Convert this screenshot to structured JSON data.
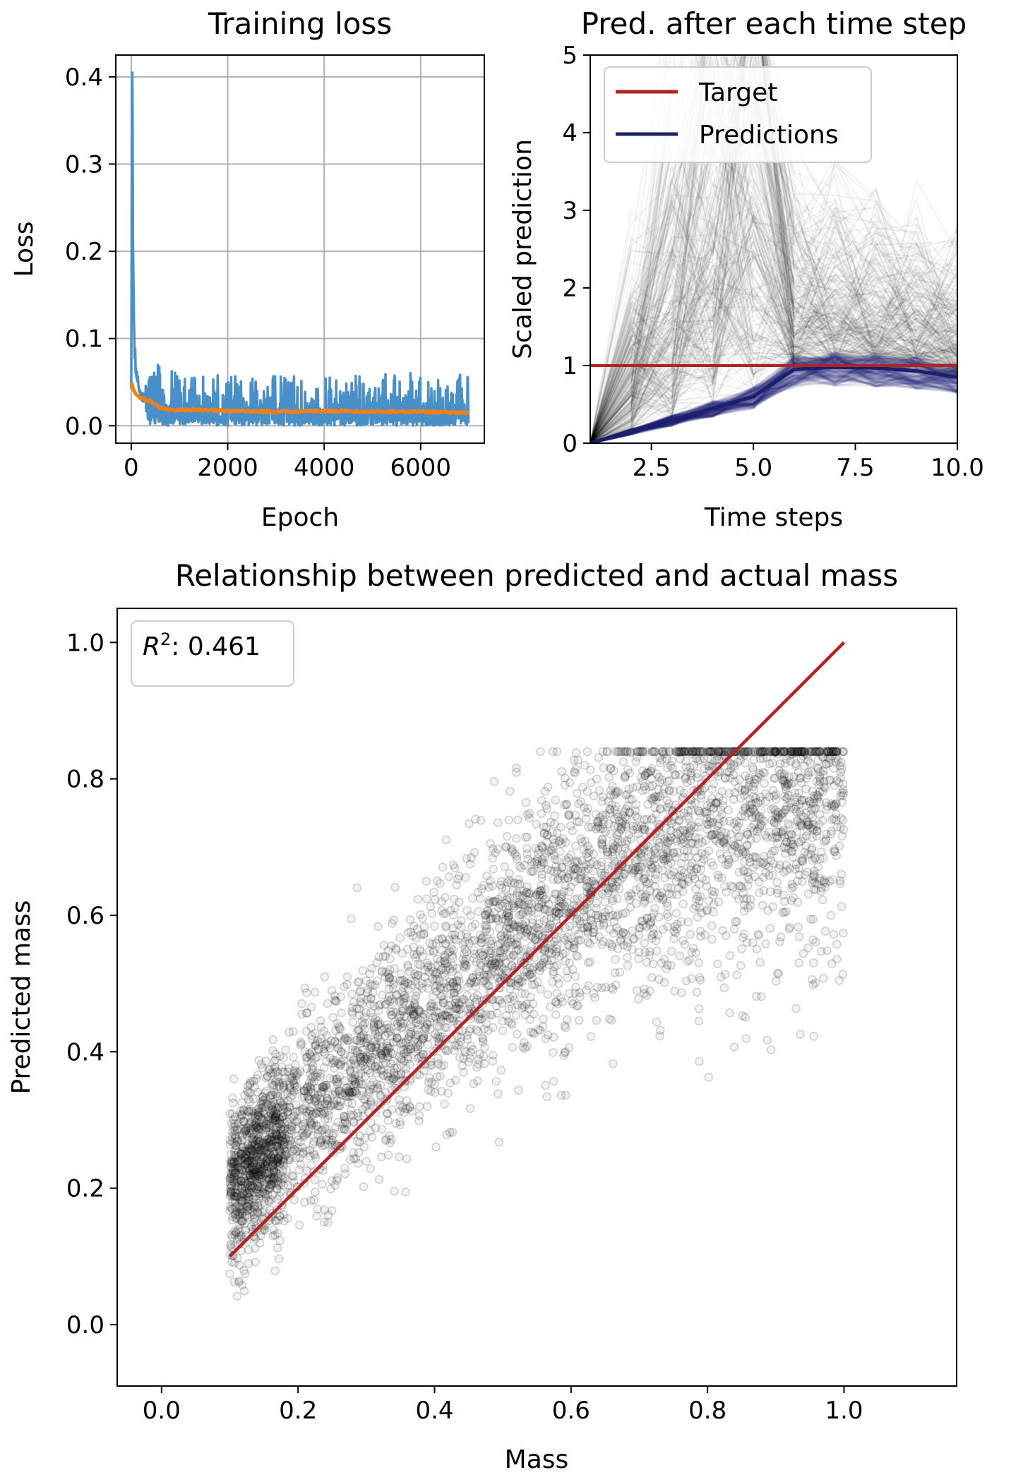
{
  "colors": {
    "loss": "#4a90c8",
    "smoothed": "#ff7f0e",
    "target": "#b22222",
    "predictions": "#1a1f6e",
    "scatter": "#000000",
    "fit": "#b22222"
  },
  "chart_data": [
    {
      "type": "line",
      "title": "Training loss",
      "xlabel": "Epoch",
      "ylabel": "Loss",
      "xlim": [
        -320,
        7320
      ],
      "ylim": [
        -0.02,
        0.425
      ],
      "xticks": [
        0,
        2000,
        4000,
        6000
      ],
      "xtick_labels": [
        "0",
        "2000",
        "4000",
        "6000"
      ],
      "yticks": [
        0.0,
        0.1,
        0.2,
        0.3,
        0.4
      ],
      "ytick_labels": [
        "0.0",
        "0.1",
        "0.2",
        "0.3",
        "0.4"
      ],
      "grid": true,
      "series": [
        {
          "style": "raw",
          "x": [
            0,
            20,
            40,
            60,
            100,
            150,
            200,
            300,
            400,
            500,
            700,
            1000,
            1500,
            2000,
            3000,
            4000,
            5000,
            6000,
            7000
          ],
          "y": [
            0.05,
            0.405,
            0.2,
            0.1,
            0.06,
            0.045,
            0.035,
            0.03,
            0.028,
            0.025,
            0.022,
            0.02,
            0.018,
            0.018,
            0.017,
            0.017,
            0.017,
            0.016,
            0.016
          ],
          "noise_envelope": {
            "x": [
              300,
              1000,
              2000,
              4000,
              7000
            ],
            "upper": [
              0.075,
              0.06,
              0.058,
              0.058,
              0.062
            ]
          }
        },
        {
          "style": "smoothed",
          "x": [
            0,
            100,
            200,
            400,
            600,
            800,
            1000,
            1500,
            2000,
            3000,
            4000,
            5000,
            6000,
            7000
          ],
          "y": [
            0.048,
            0.035,
            0.032,
            0.028,
            0.021,
            0.018,
            0.018,
            0.018,
            0.017,
            0.016,
            0.017,
            0.016,
            0.016,
            0.015
          ]
        }
      ]
    },
    {
      "type": "line",
      "title": "Pred. after each time step",
      "xlabel": "Time steps",
      "ylabel": "Scaled prediction",
      "xlim": [
        1,
        10
      ],
      "ylim": [
        0,
        5
      ],
      "xticks": [
        2.5,
        5.0,
        7.5,
        10.0
      ],
      "xtick_labels": [
        "2.5",
        "5.0",
        "7.5",
        "10.0"
      ],
      "yticks": [
        0,
        1,
        2,
        3,
        4,
        5
      ],
      "ytick_labels": [
        "0",
        "1",
        "2",
        "3",
        "4",
        "5"
      ],
      "grid": false,
      "legend": {
        "position": "top-left",
        "entries": [
          "Target",
          "Predictions"
        ]
      },
      "series": [
        {
          "name": "Target",
          "x": [
            1,
            10
          ],
          "y": [
            1,
            1
          ]
        },
        {
          "name": "Predictions",
          "x": [
            1,
            2,
            3,
            4,
            5,
            6,
            7,
            8,
            9,
            10
          ],
          "y": [
            0,
            0.15,
            0.3,
            0.45,
            0.6,
            0.95,
            0.98,
            0.97,
            0.93,
            0.85
          ]
        }
      ]
    },
    {
      "type": "scatter",
      "title": "Relationship between predicted and actual mass",
      "xlabel": "Mass",
      "ylabel": "Predicted mass",
      "xlim": [
        -0.065,
        1.165
      ],
      "ylim": [
        -0.09,
        1.05
      ],
      "xticks": [
        0.0,
        0.2,
        0.4,
        0.6,
        0.8,
        1.0
      ],
      "xtick_labels": [
        "0.0",
        "0.2",
        "0.4",
        "0.6",
        "0.8",
        "1.0"
      ],
      "yticks": [
        0.0,
        0.2,
        0.4,
        0.6,
        0.8,
        1.0
      ],
      "ytick_labels": [
        "0.0",
        "0.2",
        "0.4",
        "0.6",
        "0.8",
        "1.0"
      ],
      "grid": false,
      "annotation": {
        "label": "R",
        "sup": "2",
        "value": ": 0.461"
      },
      "mass_range": [
        0.1,
        1.0
      ],
      "point_count": 4500,
      "trend": {
        "x": [
          0.1,
          0.2,
          0.3,
          0.4,
          0.5,
          0.6,
          0.7,
          0.8,
          0.9,
          1.0
        ],
        "y": [
          0.2,
          0.3,
          0.39,
          0.48,
          0.56,
          0.63,
          0.69,
          0.74,
          0.76,
          0.77
        ]
      },
      "fit_line": {
        "x": [
          0.1,
          1.0
        ],
        "y": [
          0.1,
          1.0
        ]
      }
    }
  ]
}
